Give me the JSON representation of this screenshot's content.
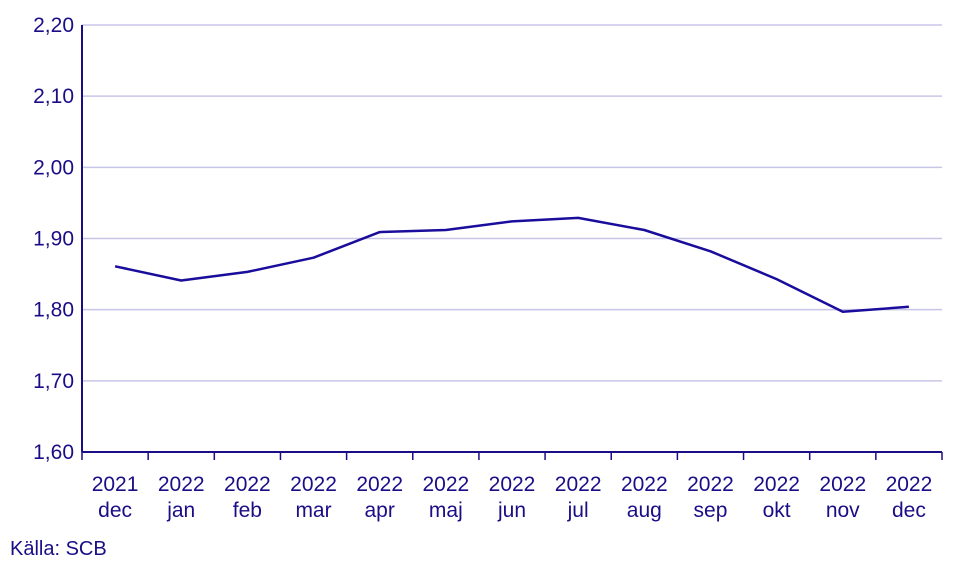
{
  "chart_data": {
    "type": "line",
    "title": "",
    "xlabel": "",
    "ylabel": "",
    "categories": [
      [
        "2021",
        "dec"
      ],
      [
        "2022",
        "jan"
      ],
      [
        "2022",
        "feb"
      ],
      [
        "2022",
        "mar"
      ],
      [
        "2022",
        "apr"
      ],
      [
        "2022",
        "maj"
      ],
      [
        "2022",
        "jun"
      ],
      [
        "2022",
        "jul"
      ],
      [
        "2022",
        "aug"
      ],
      [
        "2022",
        "sep"
      ],
      [
        "2022",
        "okt"
      ],
      [
        "2022",
        "nov"
      ],
      [
        "2022",
        "dec"
      ]
    ],
    "series": [
      {
        "values": [
          1.861,
          1.841,
          1.853,
          1.873,
          1.909,
          1.912,
          1.924,
          1.929,
          1.912,
          1.882,
          1.843,
          1.797,
          1.804
        ]
      }
    ],
    "ylim": [
      1.6,
      2.2
    ],
    "yticks": [
      "1,60",
      "1,70",
      "1,80",
      "1,90",
      "2,00",
      "2,10",
      "2,20"
    ],
    "grid": true,
    "legend": "none",
    "colors": {
      "line": "#1a0d9c",
      "axis": "#1a0d86",
      "grid": "#c8c6e8",
      "text": "#1a0d86"
    }
  },
  "source": "Källa: SCB"
}
